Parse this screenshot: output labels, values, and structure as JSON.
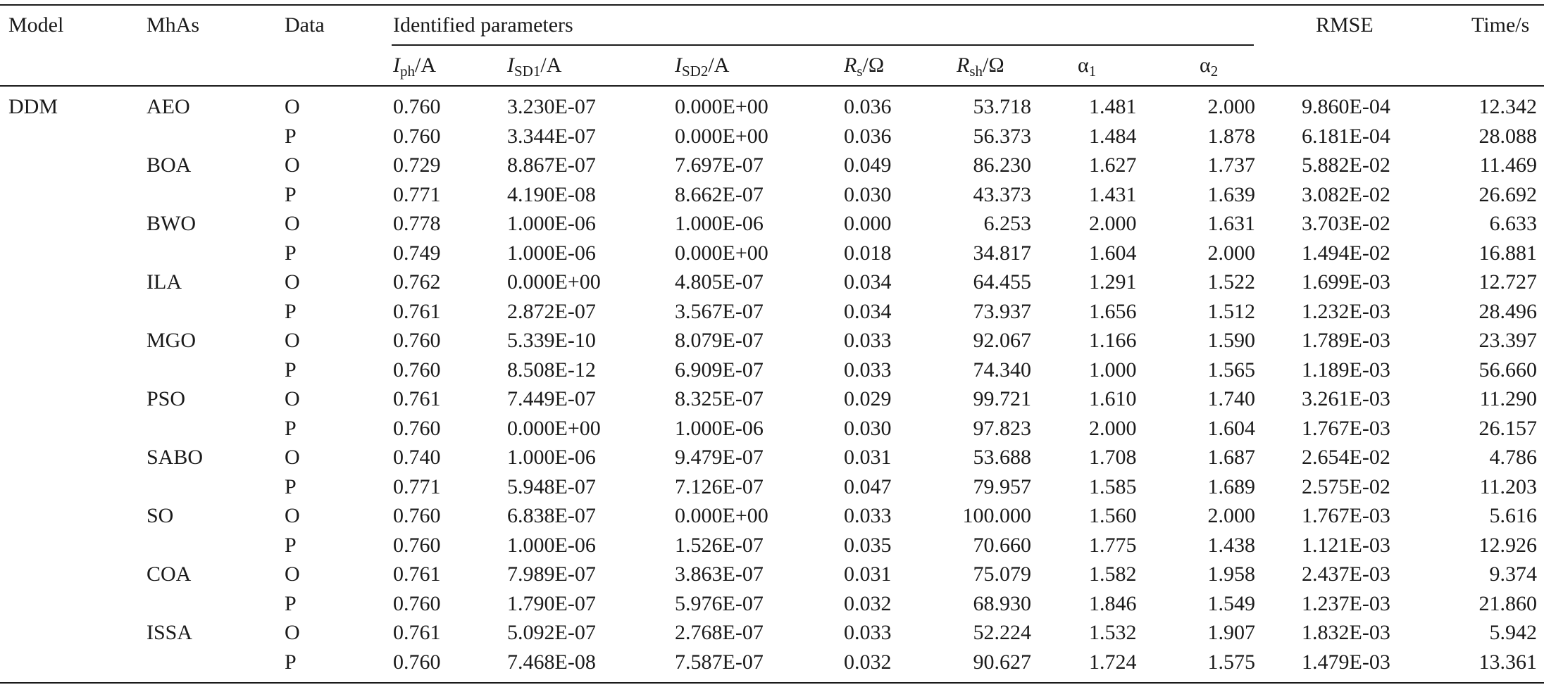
{
  "header": {
    "model": "Model",
    "mhas": "MhAs",
    "data": "Data",
    "group": "Identified parameters",
    "iph_sym": "I",
    "iph_sub": "ph",
    "iph_unit": "/A",
    "isd1_sym": "I",
    "isd1_sub": "SD1",
    "isd1_unit": "/A",
    "isd2_sym": "I",
    "isd2_sub": "SD2",
    "isd2_unit": "/A",
    "rs_sym": "R",
    "rs_sub": "s",
    "rs_unit": "/Ω",
    "rsh_sym": "R",
    "rsh_sub": "sh",
    "rsh_unit": "/Ω",
    "a1_sym": "α",
    "a1_sub": "1",
    "a2_sym": "α",
    "a2_sub": "2",
    "rmse": "RMSE",
    "time": "Time/s"
  },
  "rows": [
    {
      "model": "DDM",
      "mha": "AEO",
      "data": "O",
      "iph": "0.760",
      "isd1": "3.230E-07",
      "isd2": "0.000E+00",
      "rs": "0.036",
      "rsh": "53.718",
      "a1": "1.481",
      "a2": "2.000",
      "rmse": "9.860E-04",
      "time": "12.342"
    },
    {
      "model": "",
      "mha": "",
      "data": "P",
      "iph": "0.760",
      "isd1": "3.344E-07",
      "isd2": "0.000E+00",
      "rs": "0.036",
      "rsh": "56.373",
      "a1": "1.484",
      "a2": "1.878",
      "rmse": "6.181E-04",
      "time": "28.088"
    },
    {
      "model": "",
      "mha": "BOA",
      "data": "O",
      "iph": "0.729",
      "isd1": "8.867E-07",
      "isd2": "7.697E-07",
      "rs": "0.049",
      "rsh": "86.230",
      "a1": "1.627",
      "a2": "1.737",
      "rmse": "5.882E-02",
      "time": "11.469"
    },
    {
      "model": "",
      "mha": "",
      "data": "P",
      "iph": "0.771",
      "isd1": "4.190E-08",
      "isd2": "8.662E-07",
      "rs": "0.030",
      "rsh": "43.373",
      "a1": "1.431",
      "a2": "1.639",
      "rmse": "3.082E-02",
      "time": "26.692"
    },
    {
      "model": "",
      "mha": "BWO",
      "data": "O",
      "iph": "0.778",
      "isd1": "1.000E-06",
      "isd2": "1.000E-06",
      "rs": "0.000",
      "rsh": "6.253",
      "a1": "2.000",
      "a2": "1.631",
      "rmse": "3.703E-02",
      "time": "6.633"
    },
    {
      "model": "",
      "mha": "",
      "data": "P",
      "iph": "0.749",
      "isd1": "1.000E-06",
      "isd2": "0.000E+00",
      "rs": "0.018",
      "rsh": "34.817",
      "a1": "1.604",
      "a2": "2.000",
      "rmse": "1.494E-02",
      "time": "16.881"
    },
    {
      "model": "",
      "mha": "ILA",
      "data": "O",
      "iph": "0.762",
      "isd1": "0.000E+00",
      "isd2": "4.805E-07",
      "rs": "0.034",
      "rsh": "64.455",
      "a1": "1.291",
      "a2": "1.522",
      "rmse": "1.699E-03",
      "time": "12.727"
    },
    {
      "model": "",
      "mha": "",
      "data": "P",
      "iph": "0.761",
      "isd1": "2.872E-07",
      "isd2": "3.567E-07",
      "rs": "0.034",
      "rsh": "73.937",
      "a1": "1.656",
      "a2": "1.512",
      "rmse": "1.232E-03",
      "time": "28.496"
    },
    {
      "model": "",
      "mha": "MGO",
      "data": "O",
      "iph": "0.760",
      "isd1": "5.339E-10",
      "isd2": "8.079E-07",
      "rs": "0.033",
      "rsh": "92.067",
      "a1": "1.166",
      "a2": "1.590",
      "rmse": "1.789E-03",
      "time": "23.397"
    },
    {
      "model": "",
      "mha": "",
      "data": "P",
      "iph": "0.760",
      "isd1": "8.508E-12",
      "isd2": "6.909E-07",
      "rs": "0.033",
      "rsh": "74.340",
      "a1": "1.000",
      "a2": "1.565",
      "rmse": "1.189E-03",
      "time": "56.660"
    },
    {
      "model": "",
      "mha": "PSO",
      "data": "O",
      "iph": "0.761",
      "isd1": "7.449E-07",
      "isd2": "8.325E-07",
      "rs": "0.029",
      "rsh": "99.721",
      "a1": "1.610",
      "a2": "1.740",
      "rmse": "3.261E-03",
      "time": "11.290"
    },
    {
      "model": "",
      "mha": "",
      "data": "P",
      "iph": "0.760",
      "isd1": "0.000E+00",
      "isd2": "1.000E-06",
      "rs": "0.030",
      "rsh": "97.823",
      "a1": "2.000",
      "a2": "1.604",
      "rmse": "1.767E-03",
      "time": "26.157"
    },
    {
      "model": "",
      "mha": "SABO",
      "data": "O",
      "iph": "0.740",
      "isd1": "1.000E-06",
      "isd2": "9.479E-07",
      "rs": "0.031",
      "rsh": "53.688",
      "a1": "1.708",
      "a2": "1.687",
      "rmse": "2.654E-02",
      "time": "4.786"
    },
    {
      "model": "",
      "mha": "",
      "data": "P",
      "iph": "0.771",
      "isd1": "5.948E-07",
      "isd2": "7.126E-07",
      "rs": "0.047",
      "rsh": "79.957",
      "a1": "1.585",
      "a2": "1.689",
      "rmse": "2.575E-02",
      "time": "11.203"
    },
    {
      "model": "",
      "mha": "SO",
      "data": "O",
      "iph": "0.760",
      "isd1": "6.838E-07",
      "isd2": "0.000E+00",
      "rs": "0.033",
      "rsh": "100.000",
      "a1": "1.560",
      "a2": "2.000",
      "rmse": "1.767E-03",
      "time": "5.616"
    },
    {
      "model": "",
      "mha": "",
      "data": "P",
      "iph": "0.760",
      "isd1": "1.000E-06",
      "isd2": "1.526E-07",
      "rs": "0.035",
      "rsh": "70.660",
      "a1": "1.775",
      "a2": "1.438",
      "rmse": "1.121E-03",
      "time": "12.926"
    },
    {
      "model": "",
      "mha": "COA",
      "data": "O",
      "iph": "0.761",
      "isd1": "7.989E-07",
      "isd2": "3.863E-07",
      "rs": "0.031",
      "rsh": "75.079",
      "a1": "1.582",
      "a2": "1.958",
      "rmse": "2.437E-03",
      "time": "9.374"
    },
    {
      "model": "",
      "mha": "",
      "data": "P",
      "iph": "0.760",
      "isd1": "1.790E-07",
      "isd2": "5.976E-07",
      "rs": "0.032",
      "rsh": "68.930",
      "a1": "1.846",
      "a2": "1.549",
      "rmse": "1.237E-03",
      "time": "21.860"
    },
    {
      "model": "",
      "mha": "ISSA",
      "data": "O",
      "iph": "0.761",
      "isd1": "5.092E-07",
      "isd2": "2.768E-07",
      "rs": "0.033",
      "rsh": "52.224",
      "a1": "1.532",
      "a2": "1.907",
      "rmse": "1.832E-03",
      "time": "5.942"
    },
    {
      "model": "",
      "mha": "",
      "data": "P",
      "iph": "0.760",
      "isd1": "7.468E-08",
      "isd2": "7.587E-07",
      "rs": "0.032",
      "rsh": "90.627",
      "a1": "1.724",
      "a2": "1.575",
      "rmse": "1.479E-03",
      "time": "13.361"
    }
  ]
}
